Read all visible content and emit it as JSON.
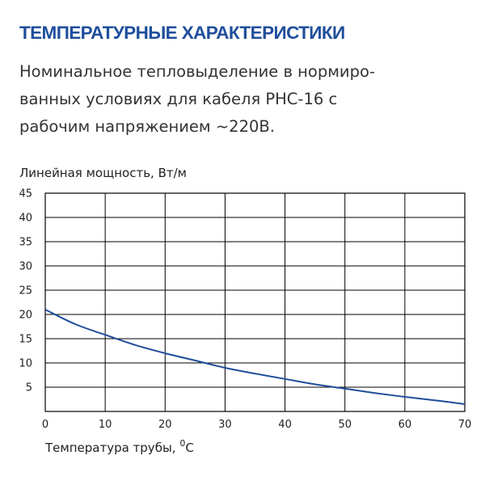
{
  "heading": {
    "title": "ТЕМПЕРАТУРНЫЕ ХАРАКТЕРИСТИКИ",
    "description_lines": [
      "Номинальное тепловыделение в нормиро-",
      "ванных условиях для кабеля РНС-16 с",
      "рабочим напряжением ~220В."
    ]
  },
  "colors": {
    "title": "#1f4e9c",
    "series": "#1f4e9c"
  },
  "chart_data": {
    "type": "line",
    "title": "",
    "xlabel": "Температура трубы, ",
    "xlabel_unit": "С",
    "xlabel_superscript": "0",
    "ylabel": "Линейная мощность, Вт/м",
    "xlim": [
      0,
      70
    ],
    "ylim": [
      0,
      45
    ],
    "xticks": [
      0,
      10,
      20,
      30,
      40,
      50,
      60,
      70
    ],
    "yticks": [
      5,
      10,
      15,
      20,
      25,
      30,
      35,
      40,
      45
    ],
    "grid": true,
    "legend": "none",
    "series": [
      {
        "x": [
          0,
          5,
          10,
          15,
          20,
          25,
          30,
          35,
          40,
          45,
          50,
          55,
          60,
          65,
          70
        ],
        "values": [
          21,
          18,
          15.8,
          13.7,
          12,
          10.5,
          9,
          7.8,
          6.7,
          5.6,
          4.7,
          3.8,
          3.0,
          2.3,
          1.5
        ]
      }
    ]
  }
}
